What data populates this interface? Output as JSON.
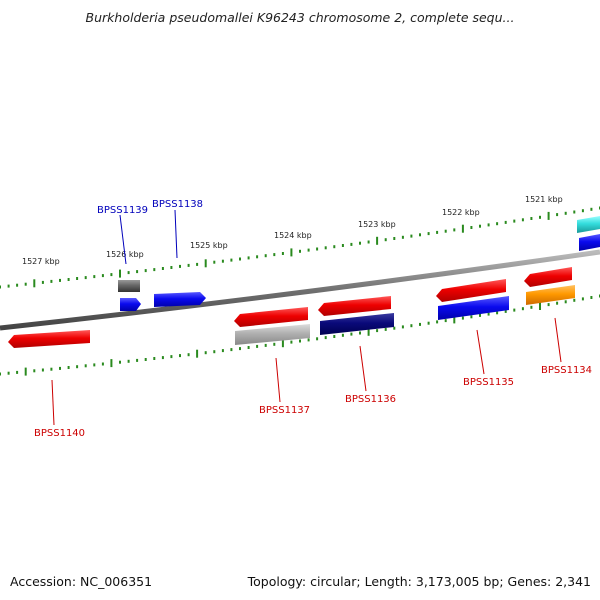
{
  "title": "Burkholderia pseudomallei K96243 chromosome 2, complete sequ...",
  "footer": {
    "accession": "Accession: NC_006351",
    "summary": "Topology: circular; Length: 3,173,005 bp; Genes: 2,341"
  },
  "ticks": [
    {
      "label": "1527 kbp"
    },
    {
      "label": "1526 kbp"
    },
    {
      "label": "1525 kbp"
    },
    {
      "label": "1524 kbp"
    },
    {
      "label": "1523 kbp"
    },
    {
      "label": "1522 kbp"
    },
    {
      "label": "1521 kbp"
    }
  ],
  "genes": [
    {
      "id": "BPSS1140",
      "label": "BPSS1140",
      "strand": "reverse",
      "color": "#ee0000",
      "label_color": "#cc0000"
    },
    {
      "id": "BPSS1139",
      "label": "BPSS1139",
      "strand": "forward",
      "color": "#0000dd",
      "label_color": "#0000bb"
    },
    {
      "id": "BPSS1138",
      "label": "BPSS1138",
      "strand": "forward",
      "color": "#0000ee",
      "label_color": "#0000bb"
    },
    {
      "id": "BPSS1137",
      "label": "BPSS1137",
      "strand": "reverse",
      "color": "#ee0000",
      "label_color": "#cc0000"
    },
    {
      "id": "BPSS1136",
      "label": "BPSS1136",
      "strand": "reverse",
      "color": "#ee0000",
      "label_color": "#cc0000"
    },
    {
      "id": "BPSS1135",
      "label": "BPSS1135",
      "strand": "reverse",
      "color": "#ee0000",
      "label_color": "#cc0000"
    },
    {
      "id": "BPSS1134",
      "label": "BPSS1134",
      "strand": "reverse",
      "color": "#ee0000",
      "label_color": "#cc0000"
    }
  ],
  "legend_colors": {
    "backbone": "#7a7a7a",
    "ticks": "#2a8a1e",
    "forward_label": "#0000bb",
    "reverse_label": "#cc0000",
    "cog_gray": "#b0b0b0",
    "cog_dark_gray": "#666666",
    "cog_navy": "#0a0a7a",
    "cog_blue": "#1010ee",
    "cog_orange": "#ff9900",
    "cog_cyan": "#33dddd"
  }
}
